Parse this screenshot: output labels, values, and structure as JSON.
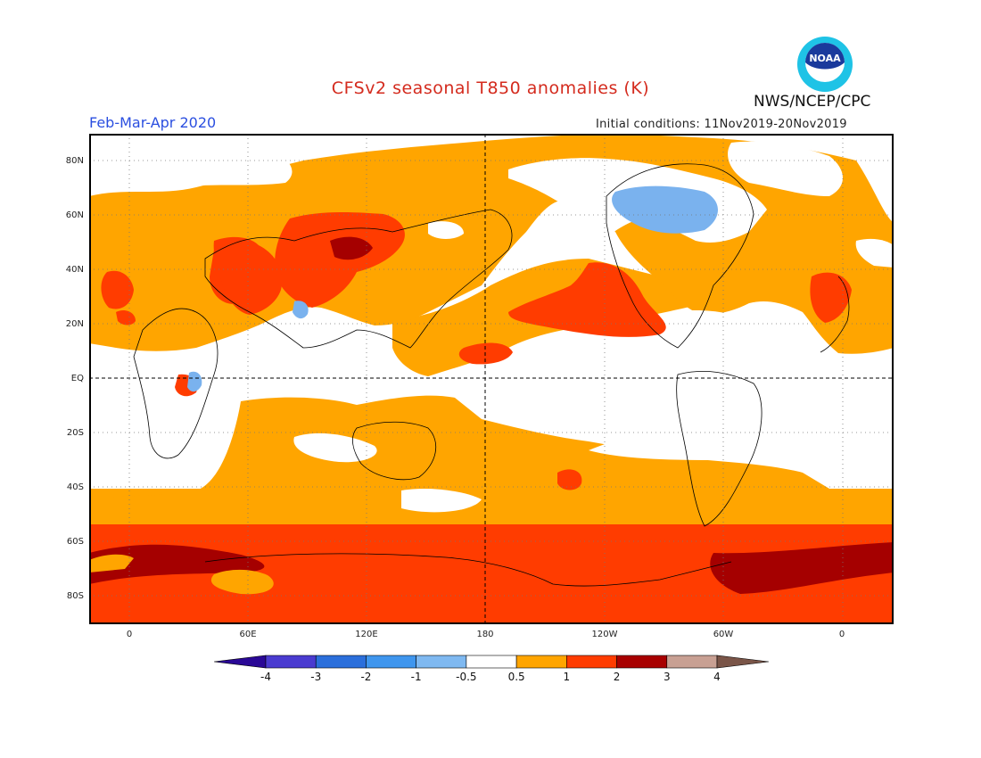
{
  "header": {
    "title": "CFSv2 seasonal T850 anomalies (K)",
    "org": "NWS/NCEP/CPC",
    "season": "Feb-Mar-Apr 2020",
    "initial_conditions": "Initial conditions: 11Nov2019-20Nov2019",
    "logo_text": "NOAA"
  },
  "axes": {
    "lat_labels": [
      "80N",
      "60N",
      "40N",
      "20N",
      "EQ",
      "20S",
      "40S",
      "60S",
      "80S"
    ],
    "lon_labels": [
      "0",
      "60E",
      "120E",
      "180",
      "120W",
      "60W",
      "0"
    ]
  },
  "colorbar": {
    "labels": [
      "-4",
      "-3",
      "-2",
      "-1",
      "-0.5",
      "0.5",
      "1",
      "2",
      "3",
      "4"
    ],
    "colors": [
      "#2a0896",
      "#4a3bd0",
      "#2b6fdb",
      "#3f96ee",
      "#7fb9f1",
      "#ffffff",
      "#ffa500",
      "#ff3c00",
      "#a80000",
      "#c8a093",
      "#7a5548"
    ]
  },
  "map": {
    "colors": {
      "orange": "#ffa500",
      "red": "#ff3c00",
      "darkred": "#a50000",
      "blue": "#7ab2ee",
      "coast": "#000000"
    }
  }
}
